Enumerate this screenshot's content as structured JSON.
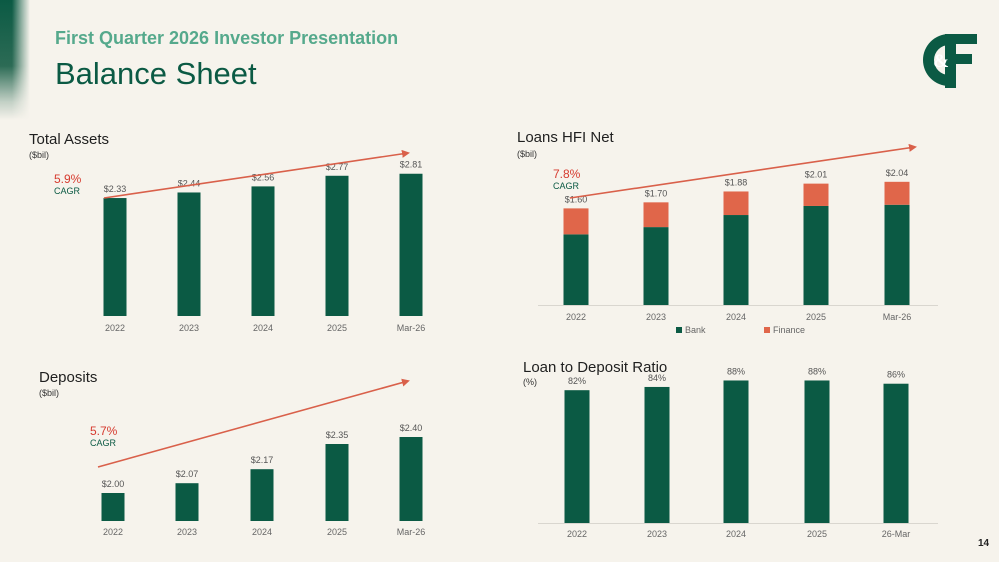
{
  "header": {
    "eyebrow": "First Quarter 2026 Investor Presentation",
    "title": "Balance Sheet",
    "logo_text": "C&F"
  },
  "page_number": "14",
  "colors": {
    "bank": "#0b5a44",
    "finance": "#e0664a",
    "arrow": "#d9604a",
    "eyebrow": "#55a98c"
  },
  "panels": {
    "total_assets": {
      "title": "Total Assets",
      "unit": "($bil)",
      "cagr_value": "5.9%",
      "cagr_label": "CAGR"
    },
    "loans": {
      "title": "Loans HFI Net",
      "unit": "($bil)",
      "cagr_value": "7.8%",
      "cagr_label": "CAGR"
    },
    "deposits": {
      "title": "Deposits",
      "unit": "($bil)",
      "cagr_value": "5.7%",
      "cagr_label": "CAGR"
    },
    "ltd": {
      "title": "Loan to Deposit Ratio",
      "unit": "(%)"
    }
  },
  "chart_data": [
    {
      "id": "total_assets",
      "type": "bar",
      "title": "Total Assets",
      "ylabel": "($bil)",
      "categories": [
        "2022",
        "2023",
        "2024",
        "2025",
        "Mar-26"
      ],
      "values": [
        2.33,
        2.44,
        2.56,
        2.77,
        2.81
      ],
      "labels": [
        "$2.33",
        "$2.44",
        "$2.56",
        "$2.77",
        "$2.81"
      ],
      "ylim": [
        0,
        3.2
      ],
      "grid": false,
      "annotation": "5.9% CAGR"
    },
    {
      "id": "loans",
      "type": "bar",
      "stacked": true,
      "title": "Loans HFI Net",
      "ylabel": "($bil)",
      "categories": [
        "2022",
        "2023",
        "2024",
        "2025",
        "Mar-26"
      ],
      "series": [
        {
          "name": "Bank",
          "values": [
            1.17,
            1.29,
            1.49,
            1.64,
            1.66
          ]
        },
        {
          "name": "Finance",
          "values": [
            0.43,
            0.41,
            0.39,
            0.37,
            0.38
          ]
        }
      ],
      "totals": [
        1.6,
        1.7,
        1.88,
        2.01,
        2.04
      ],
      "labels": [
        "$1.60",
        "$1.70",
        "$1.88",
        "$2.01",
        "$2.04"
      ],
      "ylim": [
        0,
        2.6
      ],
      "legend": "bottom",
      "grid": false,
      "annotation": "7.8% CAGR"
    },
    {
      "id": "deposits",
      "type": "bar",
      "title": "Deposits",
      "ylabel": "($bil)",
      "categories": [
        "2022",
        "2023",
        "2024",
        "2025",
        "Mar-26"
      ],
      "values": [
        2.0,
        2.07,
        2.17,
        2.35,
        2.4
      ],
      "labels": [
        "$2.00",
        "$2.07",
        "$2.17",
        "$2.35",
        "$2.40"
      ],
      "ylim": [
        1.8,
        2.5
      ],
      "grid": false,
      "annotation": "5.7% CAGR"
    },
    {
      "id": "ltd",
      "type": "bar",
      "title": "Loan to Deposit Ratio",
      "ylabel": "(%)",
      "categories": [
        "2022",
        "2023",
        "2024",
        "2025",
        "26-Mar"
      ],
      "values": [
        82,
        84,
        88,
        88,
        86
      ],
      "labels": [
        "82%",
        "84%",
        "88%",
        "88%",
        "86%"
      ],
      "ylim": [
        0,
        92
      ],
      "grid": false
    }
  ]
}
